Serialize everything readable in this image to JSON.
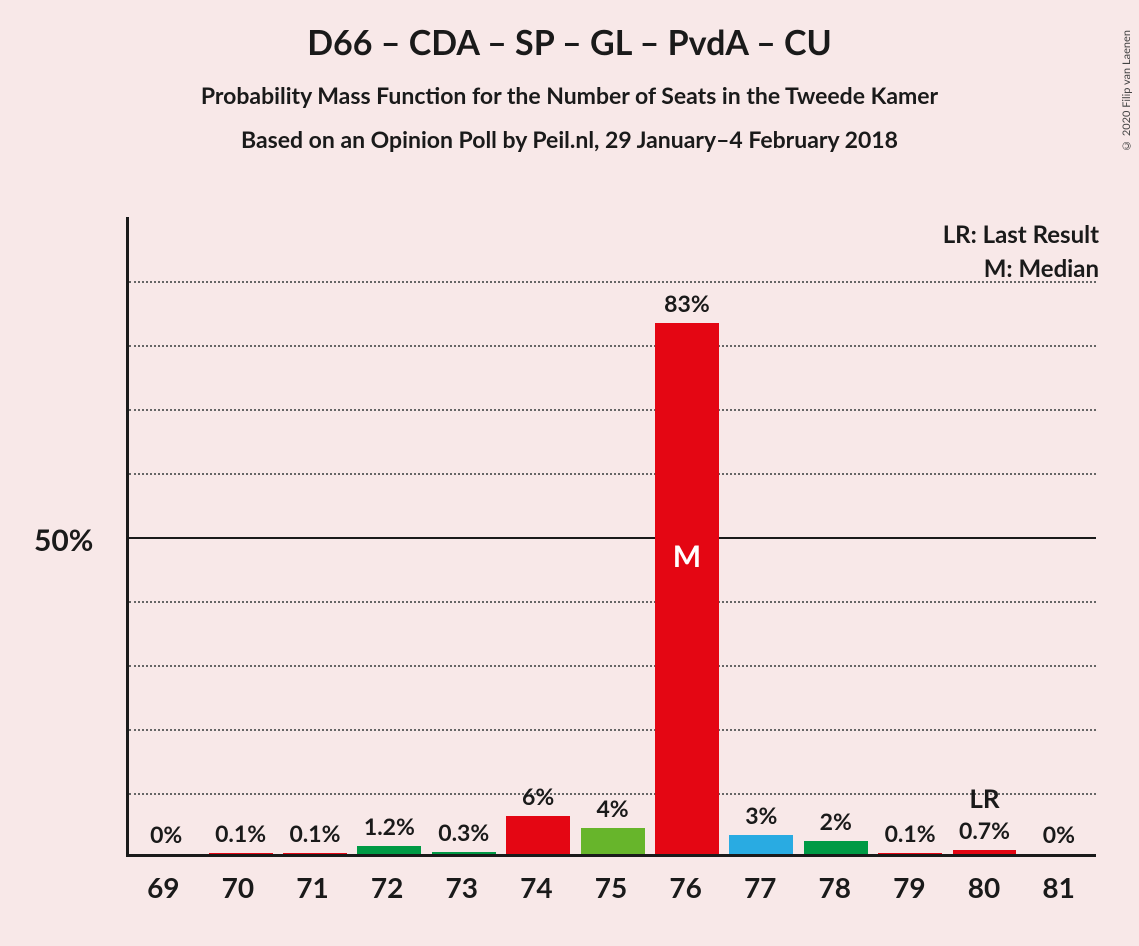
{
  "title": "D66 – CDA – SP – GL – PvdA – CU",
  "subtitle1": "Probability Mass Function for the Number of Seats in the Tweede Kamer",
  "subtitle2": "Based on an Opinion Poll by Peil.nl, 29 January–4 February 2018",
  "copyright": "© 2020 Filip van Laenen",
  "legend": {
    "lr": "LR: Last Result",
    "m": "M: Median"
  },
  "chart": {
    "type": "bar",
    "background_color": "#f8e8e8",
    "axis_color": "#1a1a1a",
    "grid_color": "#666666",
    "ymax": 100,
    "ytick_step": 10,
    "solid_gridline_at": 50,
    "ylabel_value": "50%",
    "ylabel_at": 50,
    "title_fontsize": 34,
    "subtitle_fontsize": 23,
    "label_fontsize": 23,
    "xlabel_fontsize": 28,
    "bar_width_pct": 86,
    "categories": [
      "69",
      "70",
      "71",
      "72",
      "73",
      "74",
      "75",
      "76",
      "77",
      "78",
      "79",
      "80",
      "81"
    ],
    "bars": [
      {
        "seat": "69",
        "value": 0,
        "label": "0%",
        "color": "#e40613"
      },
      {
        "seat": "70",
        "value": 0.1,
        "label": "0.1%",
        "color": "#e40613"
      },
      {
        "seat": "71",
        "value": 0.1,
        "label": "0.1%",
        "color": "#e40613"
      },
      {
        "seat": "72",
        "value": 1.2,
        "label": "1.2%",
        "color": "#009a45"
      },
      {
        "seat": "73",
        "value": 0.3,
        "label": "0.3%",
        "color": "#009a45"
      },
      {
        "seat": "74",
        "value": 6,
        "label": "6%",
        "color": "#e40613"
      },
      {
        "seat": "75",
        "value": 4,
        "label": "4%",
        "color": "#67b52b"
      },
      {
        "seat": "76",
        "value": 83,
        "label": "83%",
        "color": "#e40613",
        "inner": "M"
      },
      {
        "seat": "77",
        "value": 3,
        "label": "3%",
        "color": "#29abe2"
      },
      {
        "seat": "78",
        "value": 2,
        "label": "2%",
        "color": "#009a45"
      },
      {
        "seat": "79",
        "value": 0.1,
        "label": "0.1%",
        "color": "#e40613"
      },
      {
        "seat": "80",
        "value": 0.7,
        "label": "0.7%",
        "color": "#e40613",
        "lr": true
      },
      {
        "seat": "81",
        "value": 0,
        "label": "0%",
        "color": "#e40613"
      }
    ]
  }
}
